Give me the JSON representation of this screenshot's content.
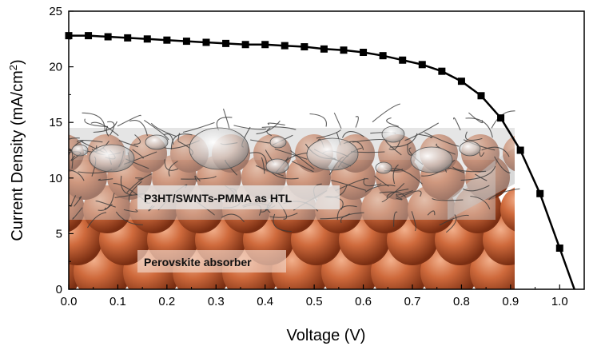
{
  "chart_data": {
    "type": "line",
    "title": "",
    "xlabel": "Voltage (V)",
    "ylabel_main": "Current Density (mA/cm",
    "ylabel_sup": "2",
    "ylabel_tail": ")",
    "xlim": [
      0.0,
      1.05
    ],
    "ylim": [
      0,
      25
    ],
    "xticks": [
      0.0,
      0.1,
      0.2,
      0.3,
      0.4,
      0.5,
      0.6,
      0.7,
      0.8,
      0.9,
      1.0
    ],
    "xtick_labels": [
      "0.0",
      "0.1",
      "0.2",
      "0.3",
      "0.4",
      "0.5",
      "0.6",
      "0.7",
      "0.8",
      "0.9",
      "1.0"
    ],
    "yticks": [
      0,
      5,
      10,
      15,
      20,
      25
    ],
    "ytick_labels": [
      "0",
      "5",
      "10",
      "15",
      "20",
      "25"
    ],
    "grid": false,
    "series": [
      {
        "marker": "square",
        "color": "#000000",
        "x": [
          0.0,
          0.04,
          0.08,
          0.12,
          0.16,
          0.2,
          0.24,
          0.28,
          0.32,
          0.36,
          0.4,
          0.44,
          0.48,
          0.52,
          0.56,
          0.6,
          0.64,
          0.68,
          0.72,
          0.76,
          0.8,
          0.84,
          0.88,
          0.92,
          0.96,
          1.0
        ],
        "y": [
          22.8,
          22.8,
          22.7,
          22.6,
          22.5,
          22.4,
          22.3,
          22.2,
          22.1,
          22.0,
          22.0,
          21.9,
          21.8,
          21.6,
          21.5,
          21.3,
          21.0,
          20.6,
          20.2,
          19.6,
          18.7,
          17.4,
          15.4,
          12.5,
          8.6,
          3.7
        ]
      }
    ],
    "curve_end": [
      1.03,
      0
    ],
    "inset": {
      "htl_label": "P3HT/SWNTs-PMMA as HTL",
      "absorber_label": "Perovskite absorber",
      "sphere_color": "#c8643a",
      "htl_color": "#c8c8c8"
    }
  }
}
